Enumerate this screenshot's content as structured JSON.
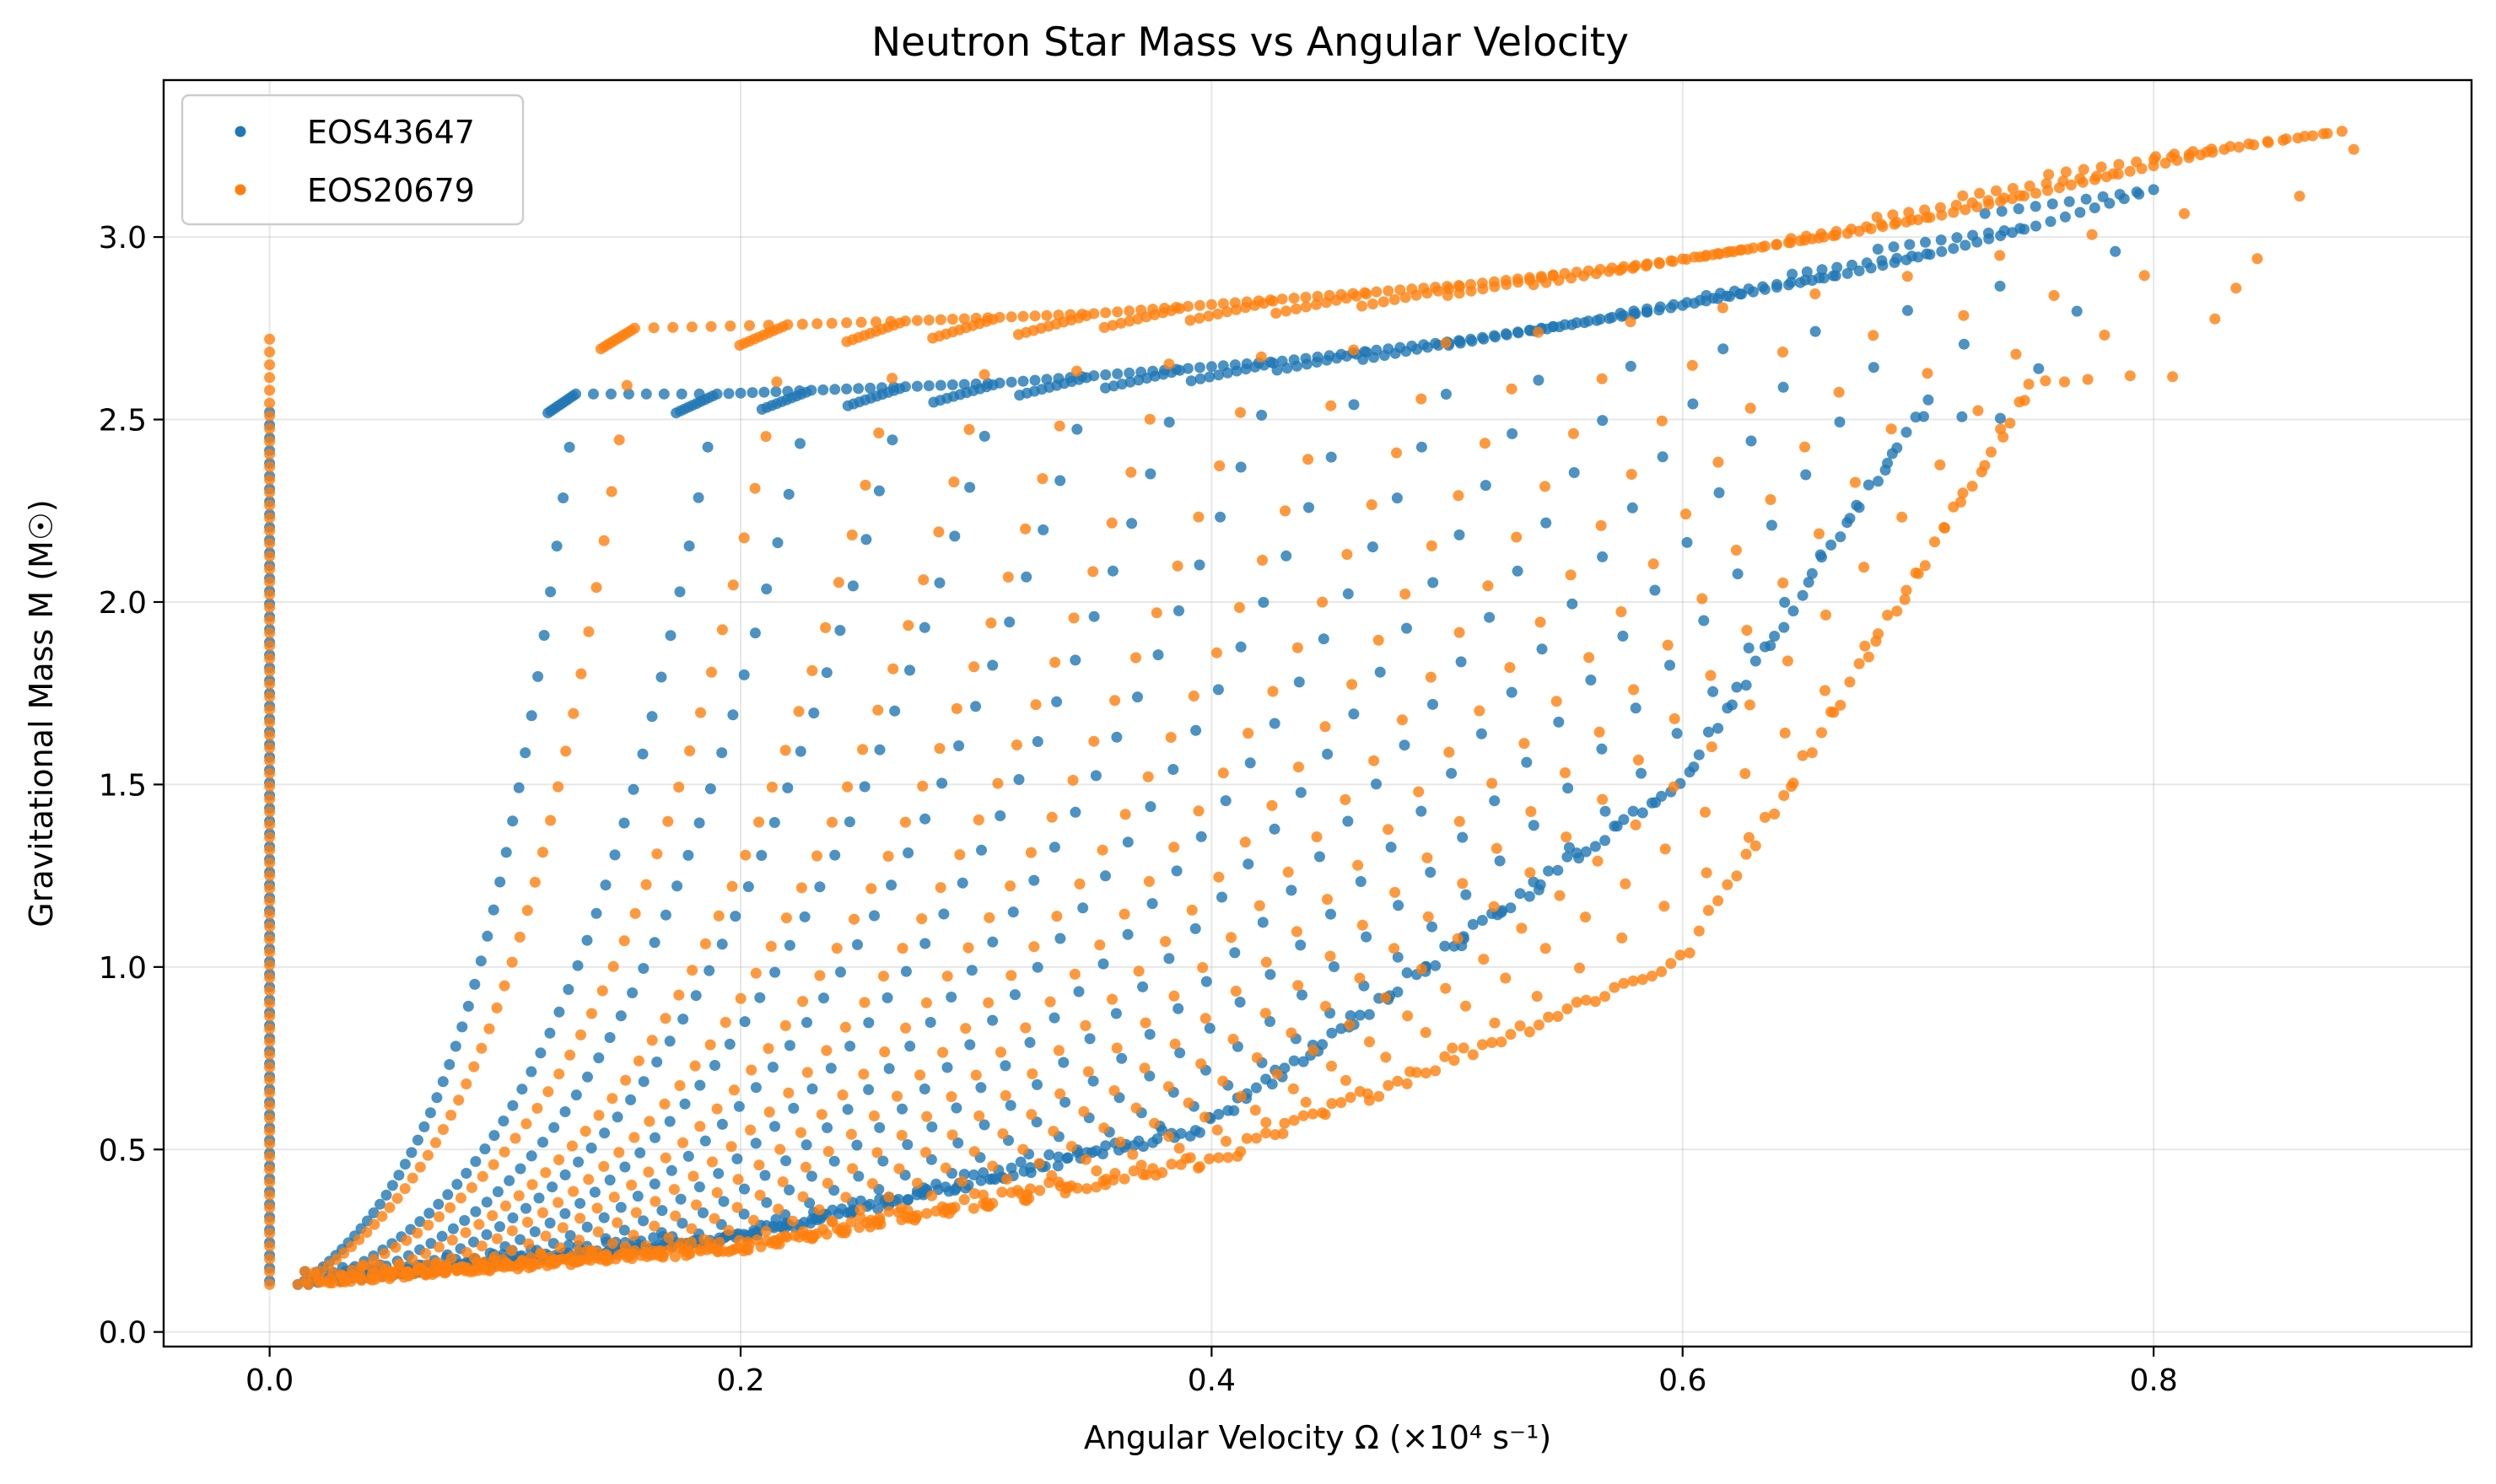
{
  "chart_data": {
    "type": "scatter",
    "title": "Neutron Star Mass vs Angular Velocity",
    "xlabel": "Angular Velocity Ω (×10⁴ s⁻¹)",
    "ylabel": "Gravitational Mass M (M☉)",
    "xlim": [
      -0.045,
      0.935
    ],
    "ylim": [
      -0.04,
      3.43
    ],
    "xticks": [
      0.0,
      0.2,
      0.4,
      0.6,
      0.8
    ],
    "xtick_labels": [
      "0.0",
      "0.2",
      "0.4",
      "0.6",
      "0.8"
    ],
    "yticks": [
      0.0,
      0.5,
      1.0,
      1.5,
      2.0,
      2.5,
      3.0
    ],
    "ytick_labels": [
      "0.0",
      "0.5",
      "1.0",
      "1.5",
      "2.0",
      "2.5",
      "3.0"
    ],
    "grid": true,
    "legend_position": "top-left",
    "series": [
      {
        "name": "EOS43647",
        "color": "#1f77b4",
        "static_branch": {
          "x": 0.0,
          "y_range": [
            0.14,
            2.53
          ]
        },
        "sequences": [
          {
            "x_end": 0.13,
            "y_end": 2.57
          },
          {
            "x_end": 0.19,
            "y_end": 2.57
          },
          {
            "x_end": 0.23,
            "y_end": 2.58
          },
          {
            "x_end": 0.27,
            "y_end": 2.59
          },
          {
            "x_end": 0.31,
            "y_end": 2.6
          },
          {
            "x_end": 0.35,
            "y_end": 2.62
          },
          {
            "x_end": 0.39,
            "y_end": 2.64
          },
          {
            "x_end": 0.43,
            "y_end": 2.66
          },
          {
            "x_end": 0.47,
            "y_end": 2.69
          },
          {
            "x_end": 0.51,
            "y_end": 2.72
          },
          {
            "x_end": 0.55,
            "y_end": 2.76
          },
          {
            "x_end": 0.59,
            "y_end": 2.8
          },
          {
            "x_end": 0.63,
            "y_end": 2.85
          },
          {
            "x_end": 0.67,
            "y_end": 2.9
          },
          {
            "x_end": 0.71,
            "y_end": 2.96
          },
          {
            "x_end": 0.75,
            "y_end": 3.03
          },
          {
            "x_end": 0.8,
            "y_end": 3.13
          }
        ],
        "low_mass_edge": {
          "x": [
            0.02,
            0.2,
            0.4,
            0.6,
            0.7
          ],
          "y": [
            0.13,
            0.25,
            0.55,
            1.5,
            2.5
          ]
        }
      },
      {
        "name": "EOS20679",
        "color": "#ff7f0e",
        "static_branch": {
          "x": 0.0,
          "y_range": [
            0.13,
            2.74
          ]
        },
        "sequences": [
          {
            "x_end": 0.155,
            "y_end": 2.75
          },
          {
            "x_end": 0.22,
            "y_end": 2.76
          },
          {
            "x_end": 0.27,
            "y_end": 2.77
          },
          {
            "x_end": 0.31,
            "y_end": 2.78
          },
          {
            "x_end": 0.35,
            "y_end": 2.79
          },
          {
            "x_end": 0.39,
            "y_end": 2.81
          },
          {
            "x_end": 0.43,
            "y_end": 2.83
          },
          {
            "x_end": 0.47,
            "y_end": 2.85
          },
          {
            "x_end": 0.51,
            "y_end": 2.87
          },
          {
            "x_end": 0.55,
            "y_end": 2.9
          },
          {
            "x_end": 0.59,
            "y_end": 2.93
          },
          {
            "x_end": 0.63,
            "y_end": 2.97
          },
          {
            "x_end": 0.67,
            "y_end": 3.01
          },
          {
            "x_end": 0.71,
            "y_end": 3.06
          },
          {
            "x_end": 0.75,
            "y_end": 3.12
          },
          {
            "x_end": 0.79,
            "y_end": 3.18
          },
          {
            "x_end": 0.83,
            "y_end": 3.24
          },
          {
            "x_end": 0.88,
            "y_end": 3.29
          }
        ],
        "low_mass_edge": {
          "x": [
            0.02,
            0.2,
            0.4,
            0.6,
            0.75
          ],
          "y": [
            0.13,
            0.22,
            0.45,
            1.0,
            2.6
          ]
        },
        "outliers": [
          {
            "x": 0.835,
            "y": 2.86
          },
          {
            "x": 0.885,
            "y": 3.24
          }
        ]
      }
    ]
  }
}
